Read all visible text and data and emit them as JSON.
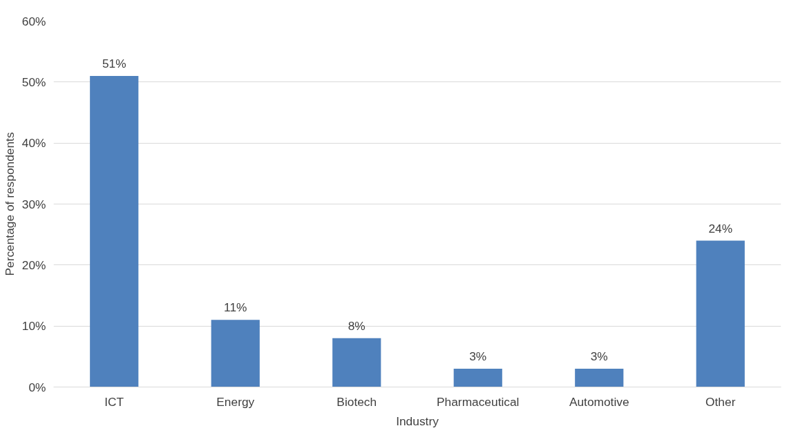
{
  "chart_data": {
    "type": "bar",
    "xlabel": "Industry",
    "ylabel": "Percentage of respondents",
    "categories": [
      "ICT",
      "Energy",
      "Biotech",
      "Pharmaceutical",
      "Automotive",
      "Other"
    ],
    "values": [
      51,
      11,
      8,
      3,
      3,
      24
    ],
    "value_labels": [
      "51%",
      "11%",
      "8%",
      "3%",
      "3%",
      "24%"
    ],
    "color": "#4f81bd",
    "ylim": [
      0,
      60
    ],
    "yticks": [
      {
        "value": 0,
        "label": "0%"
      },
      {
        "value": 10,
        "label": "10%"
      },
      {
        "value": 20,
        "label": "20%"
      },
      {
        "value": 30,
        "label": "30%"
      },
      {
        "value": 40,
        "label": "40%"
      },
      {
        "value": 50,
        "label": "50%"
      },
      {
        "value": 60,
        "label": "60%"
      }
    ],
    "grid": "y"
  }
}
